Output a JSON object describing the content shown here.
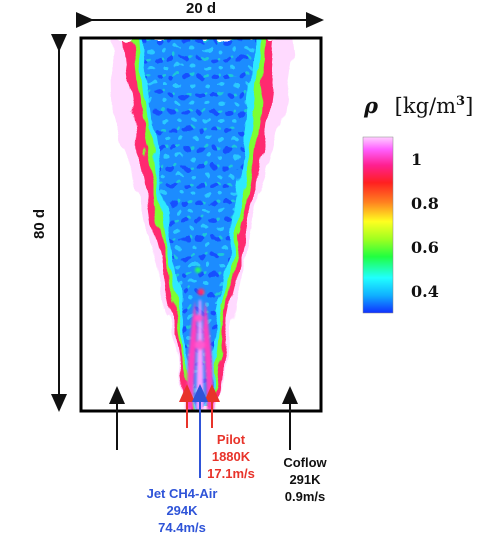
{
  "dimensions": {
    "width_label": "20 d",
    "height_label": "80 d"
  },
  "colorbar": {
    "symbol": "ρ",
    "units_prefix": "[kg/m",
    "units_exp": "3",
    "units_suffix": "]",
    "ticks": [
      "1",
      "0.8",
      "0.6",
      "0.4"
    ],
    "tick_values": [
      1.0,
      0.8,
      0.6,
      0.4
    ],
    "range": [
      0.3,
      1.1
    ],
    "colors": [
      "#1030ff",
      "#10b0ff",
      "#20ffff",
      "#20ff40",
      "#a0ff20",
      "#ffff20",
      "#ff8020",
      "#ff2020",
      "#ff2090",
      "#ff60ff",
      "#ffd0ff"
    ]
  },
  "streams": {
    "pilot": {
      "name": "Pilot",
      "temperature": "1880K",
      "velocity": "17.1m/s",
      "color": "#e8332a"
    },
    "jet": {
      "name": "Jet CH4-Air",
      "temperature": "294K",
      "velocity": "74.4m/s",
      "color": "#2f54d8"
    },
    "coflow": {
      "name": "Coflow",
      "temperature": "291K",
      "velocity": "0.9m/s",
      "color": "#111111"
    }
  }
}
